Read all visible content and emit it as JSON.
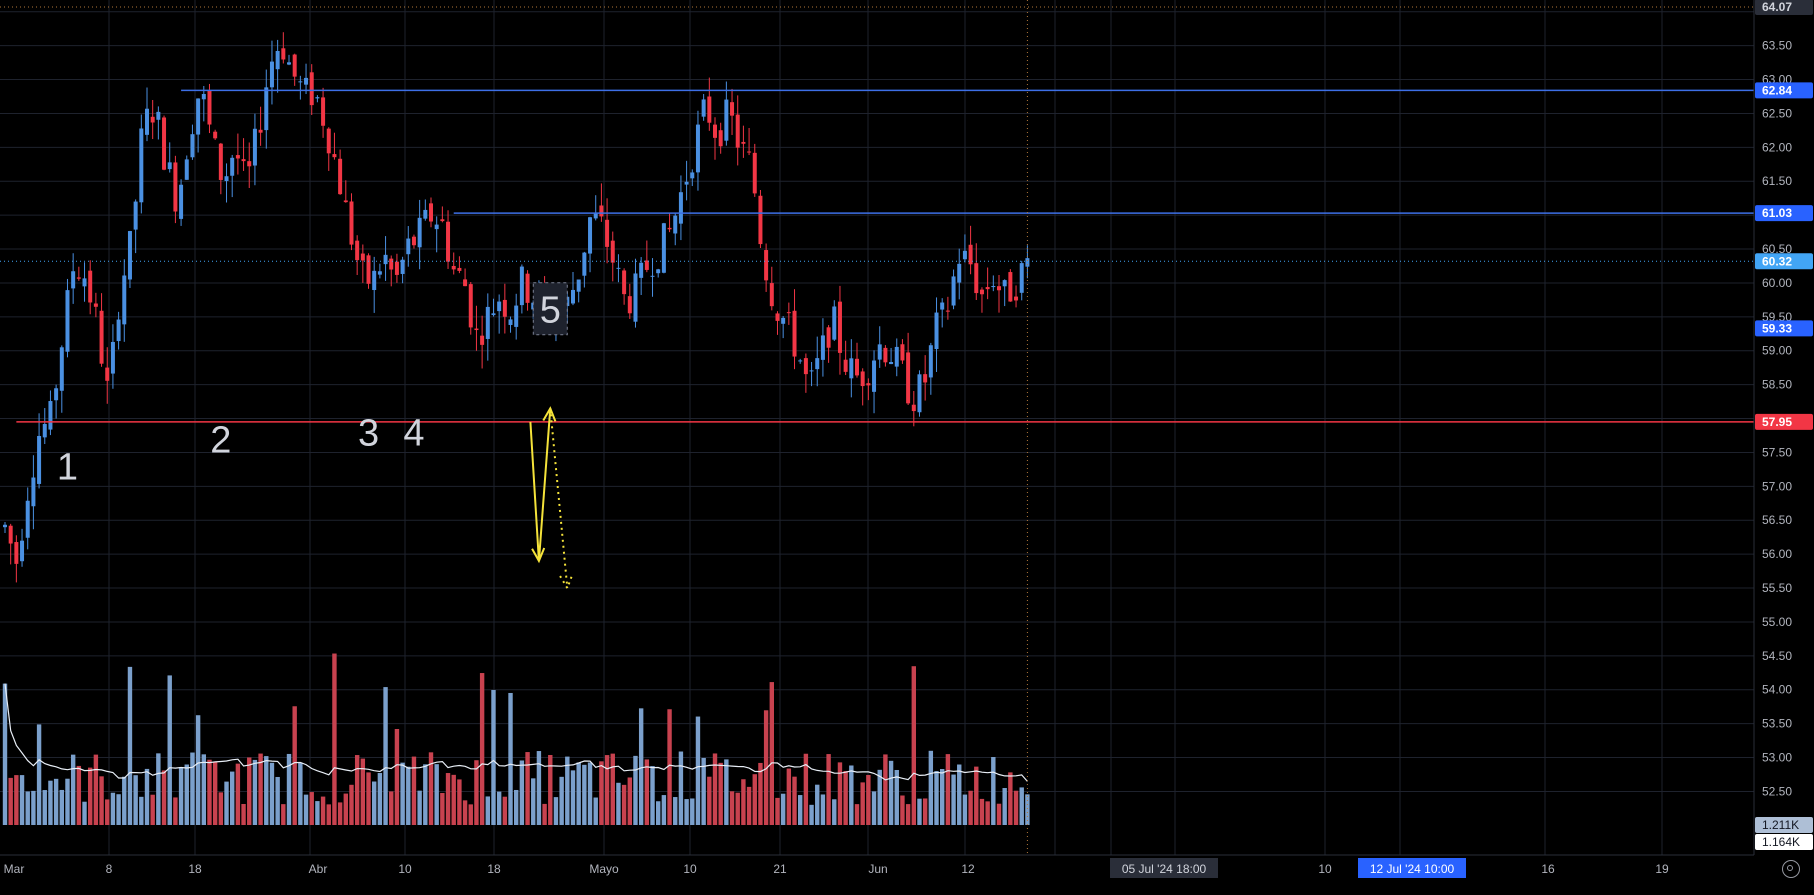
{
  "chart_data": {
    "type": "candlestick",
    "title": "",
    "price_axis": {
      "ticks": [
        "64.07",
        "63.50",
        "63.00",
        "62.50",
        "62.00",
        "61.50",
        "61.00",
        "60.50",
        "60.00",
        "59.50",
        "59.00",
        "58.50",
        "58.00",
        "57.50",
        "57.00",
        "56.50",
        "56.00",
        "55.50",
        "55.00",
        "54.50",
        "54.00",
        "53.50",
        "53.00",
        "52.50"
      ],
      "ylim": [
        52.0,
        64.2
      ]
    },
    "time_axis": {
      "labels": [
        "Mar",
        "8",
        "18",
        "Abr",
        "10",
        "18",
        "Mayo",
        "10",
        "21",
        "Jun",
        "12",
        "10",
        "16",
        "19"
      ],
      "crosshair_time_label": "05 Jul '24   18:00",
      "drawing_time_label": "12 Jul '24   10:00"
    },
    "price_badges": [
      {
        "label": "64.07",
        "value": 64.07,
        "color": "#2a2e39",
        "text_color": "#d1d4dc"
      },
      {
        "label": "62.84",
        "value": 62.84,
        "color": "#2962ff",
        "text_color": "#ffffff"
      },
      {
        "label": "61.03",
        "value": 61.03,
        "color": "#2962ff",
        "text_color": "#ffffff"
      },
      {
        "label": "60.32",
        "value": 60.32,
        "color": "#42a5f5",
        "text_color": "#ffffff"
      },
      {
        "label": "59.33",
        "value": 59.33,
        "color": "#2962ff",
        "text_color": "#ffffff"
      },
      {
        "label": "57.95",
        "value": 57.95,
        "color": "#f23645",
        "text_color": "#ffffff"
      }
    ],
    "volume_badges": [
      {
        "label": "1.211K",
        "value": 1211,
        "color": "#aebfd6"
      },
      {
        "label": "1.164K",
        "value": 1164,
        "color": "#ffffff"
      }
    ],
    "horizontal_lines": [
      {
        "name": "resistance-62-84",
        "price": 62.84,
        "color": "#3d6fe6",
        "from_bar": 85,
        "from_date": "2024-04-12"
      },
      {
        "name": "resistance-61-03",
        "price": 61.03,
        "color": "#3d6fe6",
        "from_bar": 197,
        "from_date": "2024-06-19"
      },
      {
        "name": "support-57-95",
        "price": 57.95,
        "color": "#f23645",
        "from_bar": 12,
        "from_date": "2024-03-04"
      }
    ],
    "annotations": [
      {
        "label": "1",
        "date": "2024-03-15",
        "price": 57.1
      },
      {
        "label": "2",
        "date": "2024-04-23",
        "price": 57.5
      },
      {
        "label": "3",
        "date": "2024-05-29",
        "price": 57.6
      },
      {
        "label": "4",
        "date": "2024-06-10",
        "price": 57.6
      },
      {
        "label": "5",
        "date": "2024-07-12",
        "price": 59.0
      }
    ],
    "projection": {
      "color": "#f5e33a",
      "solid_path": [
        {
          "date": "2024-07-07",
          "price": 57.95
        },
        {
          "date": "2024-07-10",
          "price": 55.9
        },
        {
          "date": "2024-07-12",
          "price": 58.15
        }
      ],
      "dotted_path": [
        {
          "date": "2024-07-12",
          "price": 58.15
        },
        {
          "date": "2024-07-17",
          "price": 55.5
        }
      ]
    },
    "series": [
      {
        "name": "",
        "type": "candlestick",
        "up_color": "#4a90e2",
        "down_color": "#f23645"
      },
      {
        "name": "",
        "type": "volume",
        "up_color": "#7ba0cc",
        "down_color": "#c8424f"
      },
      {
        "name": "",
        "type": "volume-ma",
        "color": "#e8eef6"
      }
    ],
    "grid": true
  }
}
